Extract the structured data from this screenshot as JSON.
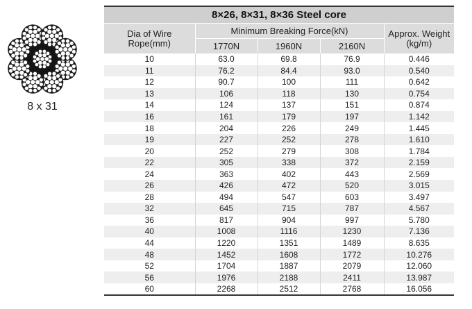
{
  "figure": {
    "label": "8 x 31",
    "icon": "wire-rope-cross-section-icon"
  },
  "table": {
    "title": "8×26,  8×31,  8×36  Steel core",
    "headers": {
      "dia_line1": "Dia of Wire",
      "dia_line2": "Rope(mm)",
      "mbf": "Minimum Breaking Force(kN)",
      "weight_line1": "Approx. Weight",
      "weight_line2": "(kg/m)",
      "grades": [
        "1770N",
        "1960N",
        "2160N"
      ]
    },
    "rows": [
      {
        "dia": "10",
        "g1770": "63.0",
        "g1960": "69.8",
        "g2160": "76.9",
        "weight": "0.446"
      },
      {
        "dia": "11",
        "g1770": "76.2",
        "g1960": "84.4",
        "g2160": "93.0",
        "weight": "0.540"
      },
      {
        "dia": "12",
        "g1770": "90.7",
        "g1960": "100",
        "g2160": "111",
        "weight": "0.642"
      },
      {
        "dia": "13",
        "g1770": "106",
        "g1960": "118",
        "g2160": "130",
        "weight": "0.754"
      },
      {
        "dia": "14",
        "g1770": "124",
        "g1960": "137",
        "g2160": "151",
        "weight": "0.874"
      },
      {
        "dia": "16",
        "g1770": "161",
        "g1960": "179",
        "g2160": "197",
        "weight": "1.142"
      },
      {
        "dia": "18",
        "g1770": "204",
        "g1960": "226",
        "g2160": "249",
        "weight": "1.445"
      },
      {
        "dia": "19",
        "g1770": "227",
        "g1960": "252",
        "g2160": "278",
        "weight": "1.610"
      },
      {
        "dia": "20",
        "g1770": "252",
        "g1960": "279",
        "g2160": "308",
        "weight": "1.784"
      },
      {
        "dia": "22",
        "g1770": "305",
        "g1960": "338",
        "g2160": "372",
        "weight": "2.159"
      },
      {
        "dia": "24",
        "g1770": "363",
        "g1960": "402",
        "g2160": "443",
        "weight": "2.569"
      },
      {
        "dia": "26",
        "g1770": "426",
        "g1960": "472",
        "g2160": "520",
        "weight": "3.015"
      },
      {
        "dia": "28",
        "g1770": "494",
        "g1960": "547",
        "g2160": "603",
        "weight": "3.497"
      },
      {
        "dia": "32",
        "g1770": "645",
        "g1960": "715",
        "g2160": "787",
        "weight": "4.567"
      },
      {
        "dia": "36",
        "g1770": "817",
        "g1960": "904",
        "g2160": "997",
        "weight": "5.780"
      },
      {
        "dia": "40",
        "g1770": "1008",
        "g1960": "1116",
        "g2160": "1230",
        "weight": "7.136"
      },
      {
        "dia": "44",
        "g1770": "1220",
        "g1960": "1351",
        "g2160": "1489",
        "weight": "8.635"
      },
      {
        "dia": "48",
        "g1770": "1452",
        "g1960": "1608",
        "g2160": "1772",
        "weight": "10.276"
      },
      {
        "dia": "52",
        "g1770": "1704",
        "g1960": "1887",
        "g2160": "2079",
        "weight": "12.060"
      },
      {
        "dia": "56",
        "g1770": "1976",
        "g1960": "2188",
        "g2160": "2411",
        "weight": "13.987"
      },
      {
        "dia": "60",
        "g1770": "2268",
        "g1960": "2512",
        "g2160": "2768",
        "weight": "16.056"
      }
    ]
  }
}
